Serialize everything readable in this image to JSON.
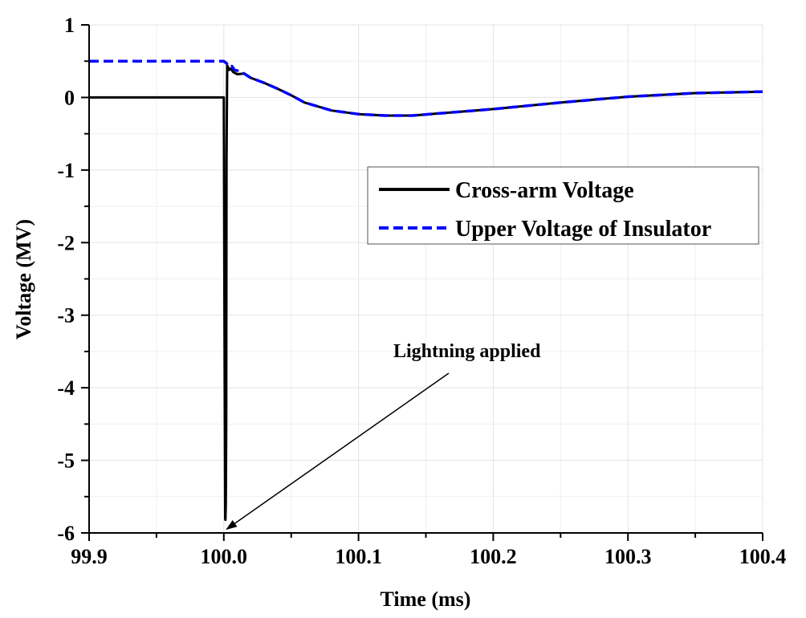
{
  "chart_data": {
    "type": "line",
    "title": "",
    "xlabel": "Time (ms)",
    "ylabel": "Voltage (MV)",
    "xlim": [
      99.9,
      100.4
    ],
    "ylim": [
      -6,
      1
    ],
    "x_ticks": [
      99.9,
      100.0,
      100.1,
      100.2,
      100.3,
      100.4
    ],
    "x_tick_labels": [
      "99.9",
      "100.0",
      "100.1",
      "100.2",
      "100.3",
      "100.4"
    ],
    "y_ticks": [
      1,
      0,
      -1,
      -2,
      -3,
      -4,
      -5,
      -6
    ],
    "y_tick_labels": [
      "1",
      "0",
      "-1",
      "-2",
      "-3",
      "-4",
      "-5",
      "-6"
    ],
    "grid": true,
    "legend_position": "right",
    "series": [
      {
        "name": "Cross-arm Voltage",
        "color": "#000000",
        "style": "solid",
        "x": [
          99.9,
          99.999,
          100.0,
          100.0005,
          100.001,
          100.0012,
          100.0015,
          100.0018,
          100.002,
          100.0025,
          100.003,
          100.004,
          100.005,
          100.007,
          100.01,
          100.015,
          100.02,
          100.03,
          100.04,
          100.05,
          100.06,
          100.08,
          100.1,
          100.12,
          100.14,
          100.16,
          100.18,
          100.2,
          100.25,
          100.3,
          100.35,
          100.4
        ],
        "y": [
          0,
          0,
          0,
          -3.0,
          -5.8,
          -5.82,
          -5.6,
          -4.5,
          -0.8,
          0.44,
          0.42,
          0.38,
          0.4,
          0.35,
          0.32,
          0.33,
          0.27,
          0.2,
          0.12,
          0.03,
          -0.07,
          -0.18,
          -0.23,
          -0.25,
          -0.25,
          -0.22,
          -0.19,
          -0.16,
          -0.07,
          0.01,
          0.06,
          0.08
        ]
      },
      {
        "name": "Upper Voltage of Insulator",
        "color": "#0000ff",
        "style": "dashed",
        "x": [
          99.9,
          99.999,
          100.0,
          100.002,
          100.004,
          100.006,
          100.008,
          100.01,
          100.015,
          100.02,
          100.03,
          100.04,
          100.05,
          100.06,
          100.08,
          100.1,
          100.12,
          100.14,
          100.16,
          100.18,
          100.2,
          100.25,
          100.3,
          100.35,
          100.4
        ],
        "y": [
          0.5,
          0.5,
          0.5,
          0.47,
          0.42,
          0.43,
          0.38,
          0.37,
          0.33,
          0.27,
          0.2,
          0.12,
          0.03,
          -0.07,
          -0.18,
          -0.23,
          -0.25,
          -0.25,
          -0.22,
          -0.19,
          -0.16,
          -0.07,
          0.01,
          0.06,
          0.08
        ]
      }
    ],
    "annotations": [
      {
        "text": "Lightning applied",
        "points_to": {
          "x": 100.0,
          "y": -6.0
        }
      }
    ]
  }
}
